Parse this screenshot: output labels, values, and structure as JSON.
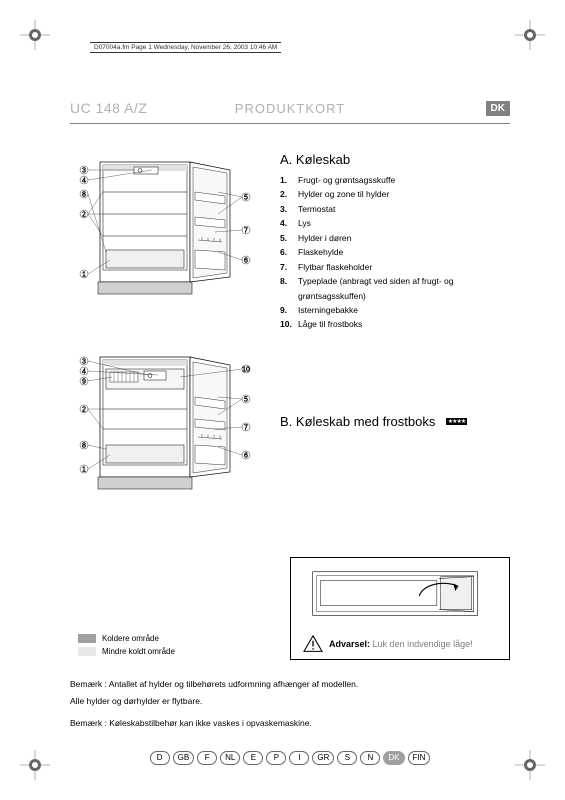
{
  "timestamp": "D07004a.fm  Page 1  Wednesday, November 26, 2003  10:46 AM",
  "header": {
    "model": "UC 148 A/Z",
    "title": "PRODUKTKORT",
    "country_badge": "DK"
  },
  "section_a": {
    "title": "A.  Køleskab",
    "items": [
      {
        "num": "1.",
        "label": "Frugt- og grøntsagsskuffe"
      },
      {
        "num": "2.",
        "label": "Hylder og zone til hylder"
      },
      {
        "num": "3.",
        "label": "Termostat"
      },
      {
        "num": "4.",
        "label": "Lys"
      },
      {
        "num": "5.",
        "label": "Hylder i døren"
      },
      {
        "num": "6.",
        "label": "Flaskehylde"
      },
      {
        "num": "7.",
        "label": "Flytbar flaskeholder"
      },
      {
        "num": "8.",
        "label": "Typeplade (anbragt ved siden af frugt- og grøntsagsskuffen)"
      },
      {
        "num": "9.",
        "label": "Isterningebakke"
      },
      {
        "num": "10.",
        "label": "Låge til frostboks"
      }
    ],
    "callouts": [
      "1",
      "2",
      "3",
      "4",
      "5",
      "6",
      "7",
      "8"
    ]
  },
  "section_b": {
    "title": "B.  Køleskab med frostboks",
    "stars": "★★★★",
    "callouts": [
      "1",
      "2",
      "3",
      "4",
      "5",
      "6",
      "7",
      "8",
      "9",
      "10"
    ]
  },
  "legend": {
    "cold": "Koldere område",
    "less_cold": "Mindre koldt område",
    "cold_color": "#a0a0a0",
    "less_cold_color": "#e8e8e8"
  },
  "warning": {
    "label": "Advarsel:",
    "text": "Luk den indvendige låge!"
  },
  "notes": {
    "line1": "Bemærk : Antallet af hylder og tilbehørets udformning afhænger af modellen.",
    "line2": "Alle hylder og dørhylder er flytbare.",
    "line3": "Bemærk : Køleskabstilbehør kan ikke vaskes i opvaskemaskine."
  },
  "languages": [
    "D",
    "GB",
    "F",
    "NL",
    "E",
    "P",
    "I",
    "GR",
    "S",
    "N",
    "DK",
    "FIN"
  ],
  "active_language": "DK"
}
